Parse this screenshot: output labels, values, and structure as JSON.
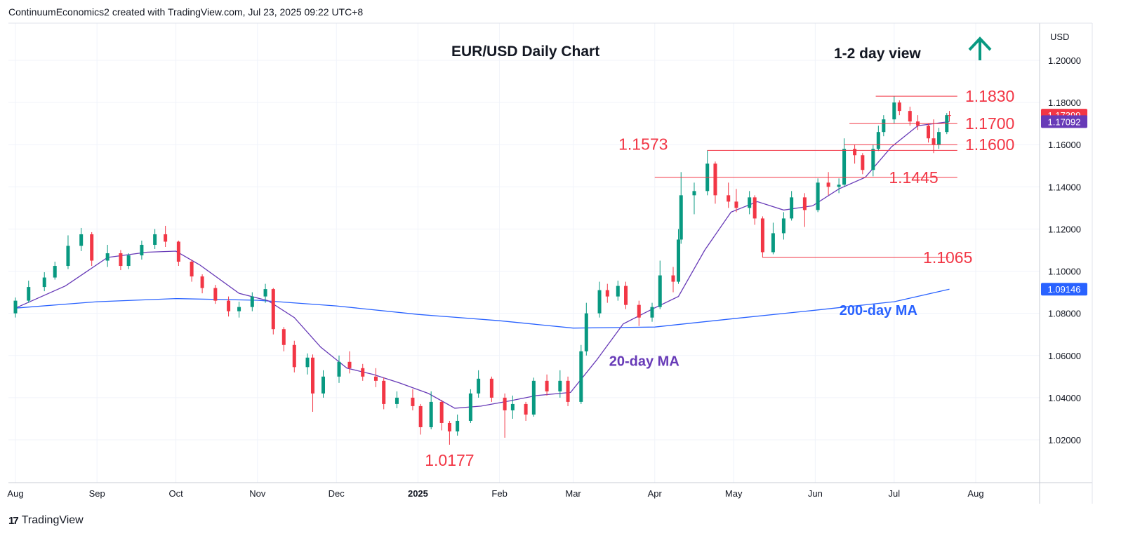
{
  "header": {
    "text": "ContinuumEconomics2 created with TradingView.com, Jul 23, 2025 09:22 UTC+8"
  },
  "footer": {
    "logo": "17",
    "brand": "TradingView"
  },
  "colors": {
    "up": "#089981",
    "down": "#f23645",
    "ma20": "#673ab7",
    "ma200": "#2962ff",
    "level": "#f23645",
    "arrow": "#089981"
  },
  "chart_data": {
    "type": "candlestick",
    "title": "EUR/USD Daily Chart",
    "view_label": "1-2 day view",
    "view_direction": "up-arrow-icon",
    "currency": "USD",
    "ylim": [
      1.0,
      1.2133
    ],
    "y_ticks": [
      "1.20000",
      "1.18000",
      "1.16000",
      "1.14000",
      "1.12000",
      "1.10000",
      "1.08000",
      "1.06000",
      "1.04000",
      "1.02000"
    ],
    "x_ticks": [
      {
        "label": "Aug",
        "date": "2024-08-01",
        "bold": false
      },
      {
        "label": "Sep",
        "date": "2024-09-01",
        "bold": false
      },
      {
        "label": "Oct",
        "date": "2024-10-01",
        "bold": false
      },
      {
        "label": "Nov",
        "date": "2024-11-01",
        "bold": false
      },
      {
        "label": "Dec",
        "date": "2024-12-01",
        "bold": false
      },
      {
        "label": "2025",
        "date": "2025-01-01",
        "bold": true
      },
      {
        "label": "Feb",
        "date": "2025-02-01",
        "bold": false
      },
      {
        "label": "Mar",
        "date": "2025-03-01",
        "bold": false
      },
      {
        "label": "Apr",
        "date": "2025-04-01",
        "bold": false
      },
      {
        "label": "May",
        "date": "2025-05-01",
        "bold": false
      },
      {
        "label": "Jun",
        "date": "2025-06-01",
        "bold": false
      },
      {
        "label": "Jul",
        "date": "2025-07-01",
        "bold": false
      },
      {
        "label": "Aug",
        "date": "2025-08-01",
        "bold": false
      }
    ],
    "price_labels": [
      {
        "text": "1.17399",
        "value": 1.17399,
        "bg": "#f23645"
      },
      {
        "text": "1.17092",
        "value": 1.17092,
        "bg": "#673ab7"
      },
      {
        "text": "1.09146",
        "value": 1.09146,
        "bg": "#2962ff"
      }
    ],
    "levels": [
      {
        "label": "1.1830",
        "value": 1.183,
        "x0": "2025-06-24",
        "x1": "2025-07-25",
        "label_at": "2025-07-28"
      },
      {
        "label": "1.1700",
        "value": 1.17,
        "x0": "2025-06-14",
        "x1": "2025-07-25",
        "label_at": "2025-07-28"
      },
      {
        "label": "1.1600",
        "value": 1.16,
        "x0": "2025-06-12",
        "x1": "2025-07-25",
        "label_at": "2025-07-28"
      },
      {
        "label": "1.1573",
        "value": 1.1573,
        "x0": "2025-04-21",
        "x1": "2025-07-25",
        "label_at": "2025-04-06"
      },
      {
        "label": "1.1445",
        "value": 1.1445,
        "x0": "2025-04-01",
        "x1": "2025-07-25",
        "label_at": "2025-06-29"
      },
      {
        "label": "1.1065",
        "value": 1.1065,
        "x0": "2025-05-12",
        "x1": "2025-07-22",
        "label_at": "2025-07-12"
      },
      {
        "label": "1.0177",
        "value": 1.0177,
        "x0": "",
        "x1": "",
        "label_at": "2025-01-13"
      }
    ],
    "ma_labels": [
      {
        "text": "20-day MA",
        "date": "2025-03-28",
        "value": 1.0551,
        "color": "#673ab7"
      },
      {
        "text": "200-day MA",
        "date": "2025-06-25",
        "value": 1.0792,
        "color": "#2962ff"
      }
    ],
    "ma20": [
      [
        "2024-08-01",
        1.0825
      ],
      [
        "2024-08-20",
        1.093
      ],
      [
        "2024-09-05",
        1.1065
      ],
      [
        "2024-09-20",
        1.109
      ],
      [
        "2024-10-01",
        1.1095
      ],
      [
        "2024-10-10",
        1.103
      ],
      [
        "2024-10-25",
        1.0895
      ],
      [
        "2024-11-05",
        1.086
      ],
      [
        "2024-11-15",
        1.078
      ],
      [
        "2024-11-25",
        1.064
      ],
      [
        "2024-12-05",
        1.054
      ],
      [
        "2024-12-15",
        1.051
      ],
      [
        "2024-12-25",
        1.047
      ],
      [
        "2025-01-05",
        1.042
      ],
      [
        "2025-01-15",
        1.035
      ],
      [
        "2025-01-25",
        1.036
      ],
      [
        "2025-02-05",
        1.0385
      ],
      [
        "2025-02-15",
        1.041
      ],
      [
        "2025-02-28",
        1.0425
      ],
      [
        "2025-03-10",
        1.058
      ],
      [
        "2025-03-20",
        1.075
      ],
      [
        "2025-03-31",
        1.082
      ],
      [
        "2025-04-10",
        1.088
      ],
      [
        "2025-04-20",
        1.11
      ],
      [
        "2025-04-30",
        1.128
      ],
      [
        "2025-05-10",
        1.133
      ],
      [
        "2025-05-20",
        1.129
      ],
      [
        "2025-05-31",
        1.131
      ],
      [
        "2025-06-10",
        1.139
      ],
      [
        "2025-06-20",
        1.1445
      ],
      [
        "2025-06-30",
        1.159
      ],
      [
        "2025-07-10",
        1.169
      ],
      [
        "2025-07-22",
        1.17092
      ]
    ],
    "ma200": [
      [
        "2024-08-01",
        1.0825
      ],
      [
        "2024-09-01",
        1.0855
      ],
      [
        "2024-10-01",
        1.087
      ],
      [
        "2024-11-01",
        1.0862
      ],
      [
        "2024-12-01",
        1.0835
      ],
      [
        "2025-01-01",
        1.0795
      ],
      [
        "2025-02-01",
        1.0765
      ],
      [
        "2025-03-01",
        1.073
      ],
      [
        "2025-04-01",
        1.0735
      ],
      [
        "2025-05-01",
        1.0775
      ],
      [
        "2025-06-01",
        1.0815
      ],
      [
        "2025-07-01",
        1.0855
      ],
      [
        "2025-07-22",
        1.09146
      ]
    ],
    "candles": [
      [
        "2024-08-01",
        1.08,
        1.0875,
        1.078,
        1.086
      ],
      [
        "2024-08-06",
        1.086,
        1.0955,
        1.085,
        1.0925
      ],
      [
        "2024-08-12",
        1.0925,
        1.0995,
        1.0905,
        1.097
      ],
      [
        "2024-08-16",
        1.097,
        1.1045,
        1.096,
        1.1025
      ],
      [
        "2024-08-21",
        1.1025,
        1.117,
        1.101,
        1.112
      ],
      [
        "2024-08-26",
        1.112,
        1.1205,
        1.1095,
        1.1175
      ],
      [
        "2024-08-30",
        1.1175,
        1.1185,
        1.1025,
        1.105
      ],
      [
        "2024-09-05",
        1.105,
        1.1125,
        1.102,
        1.1085
      ],
      [
        "2024-09-10",
        1.1085,
        1.11,
        1.1005,
        1.1025
      ],
      [
        "2024-09-13",
        1.1025,
        1.1085,
        1.101,
        1.1075
      ],
      [
        "2024-09-18",
        1.1075,
        1.1145,
        1.1055,
        1.1125
      ],
      [
        "2024-09-23",
        1.1125,
        1.12,
        1.1105,
        1.1175
      ],
      [
        "2024-09-27",
        1.1175,
        1.1215,
        1.1115,
        1.114
      ],
      [
        "2024-10-02",
        1.114,
        1.1145,
        1.1025,
        1.1045
      ],
      [
        "2024-10-07",
        1.1045,
        1.1055,
        1.095,
        1.0975
      ],
      [
        "2024-10-11",
        1.0975,
        1.0985,
        1.0895,
        1.092
      ],
      [
        "2024-10-16",
        1.092,
        1.0935,
        1.0845,
        1.086
      ],
      [
        "2024-10-21",
        1.086,
        1.088,
        1.0785,
        1.081
      ],
      [
        "2024-10-25",
        1.081,
        1.0855,
        1.078,
        1.083
      ],
      [
        "2024-10-30",
        1.083,
        1.09,
        1.081,
        1.088
      ],
      [
        "2024-11-04",
        1.088,
        1.094,
        1.085,
        1.0915
      ],
      [
        "2024-11-07",
        1.0915,
        1.092,
        1.07,
        1.0725
      ],
      [
        "2024-11-11",
        1.0725,
        1.0735,
        1.062,
        1.065
      ],
      [
        "2024-11-15",
        1.065,
        1.067,
        1.052,
        1.0545
      ],
      [
        "2024-11-20",
        1.0545,
        1.061,
        1.051,
        1.059
      ],
      [
        "2024-11-22",
        1.059,
        1.0605,
        1.0333,
        1.042
      ],
      [
        "2024-11-26",
        1.042,
        1.053,
        1.04,
        1.05
      ],
      [
        "2024-12-02",
        1.05,
        1.06,
        1.047,
        1.057
      ],
      [
        "2024-12-06",
        1.057,
        1.062,
        1.0515,
        1.054
      ],
      [
        "2024-12-11",
        1.054,
        1.056,
        1.048,
        1.05
      ],
      [
        "2024-12-16",
        1.05,
        1.054,
        1.045,
        1.048
      ],
      [
        "2024-12-19",
        1.048,
        1.0495,
        1.0345,
        1.037
      ],
      [
        "2024-12-24",
        1.037,
        1.043,
        1.035,
        1.04
      ],
      [
        "2024-12-30",
        1.04,
        1.044,
        1.034,
        1.036
      ],
      [
        "2025-01-02",
        1.036,
        1.037,
        1.0225,
        1.026
      ],
      [
        "2025-01-06",
        1.026,
        1.043,
        1.025,
        1.038
      ],
      [
        "2025-01-10",
        1.038,
        1.039,
        1.0245,
        1.028
      ],
      [
        "2025-01-13",
        1.028,
        1.029,
        1.0177,
        1.024
      ],
      [
        "2025-01-16",
        1.024,
        1.032,
        1.022,
        1.029
      ],
      [
        "2025-01-21",
        1.029,
        1.044,
        1.028,
        1.042
      ],
      [
        "2025-01-24",
        1.042,
        1.053,
        1.04,
        1.049
      ],
      [
        "2025-01-29",
        1.049,
        1.05,
        1.038,
        1.04
      ],
      [
        "2025-02-03",
        1.04,
        1.042,
        1.021,
        1.034
      ],
      [
        "2025-02-06",
        1.034,
        1.041,
        1.03,
        1.037
      ],
      [
        "2025-02-11",
        1.037,
        1.038,
        1.029,
        1.032
      ],
      [
        "2025-02-14",
        1.032,
        1.0495,
        1.031,
        1.048
      ],
      [
        "2025-02-19",
        1.048,
        1.051,
        1.041,
        1.043
      ],
      [
        "2025-02-24",
        1.043,
        1.053,
        1.04,
        1.048
      ],
      [
        "2025-02-27",
        1.048,
        1.05,
        1.036,
        1.038
      ],
      [
        "2025-03-04",
        1.038,
        1.065,
        1.037,
        1.062
      ],
      [
        "2025-03-06",
        1.062,
        1.085,
        1.06,
        1.08
      ],
      [
        "2025-03-11",
        1.08,
        1.095,
        1.078,
        1.091
      ],
      [
        "2025-03-14",
        1.091,
        1.094,
        1.085,
        1.088
      ],
      [
        "2025-03-18",
        1.088,
        1.0955,
        1.086,
        1.093
      ],
      [
        "2025-03-21",
        1.093,
        1.095,
        1.082,
        1.084
      ],
      [
        "2025-03-26",
        1.084,
        1.086,
        1.074,
        1.078
      ],
      [
        "2025-03-31",
        1.078,
        1.085,
        1.076,
        1.083
      ],
      [
        "2025-04-03",
        1.083,
        1.105,
        1.082,
        1.098
      ],
      [
        "2025-04-08",
        1.098,
        1.102,
        1.09,
        1.095
      ],
      [
        "2025-04-10",
        1.095,
        1.12,
        1.094,
        1.115
      ],
      [
        "2025-04-11",
        1.115,
        1.147,
        1.113,
        1.136
      ],
      [
        "2025-04-16",
        1.136,
        1.142,
        1.127,
        1.138
      ],
      [
        "2025-04-21",
        1.138,
        1.1573,
        1.136,
        1.151
      ],
      [
        "2025-04-24",
        1.151,
        1.152,
        1.132,
        1.136
      ],
      [
        "2025-04-29",
        1.136,
        1.142,
        1.13,
        1.133
      ],
      [
        "2025-05-02",
        1.133,
        1.139,
        1.128,
        1.13
      ],
      [
        "2025-05-07",
        1.13,
        1.138,
        1.127,
        1.135
      ],
      [
        "2025-05-09",
        1.135,
        1.136,
        1.122,
        1.125
      ],
      [
        "2025-05-12",
        1.125,
        1.126,
        1.1065,
        1.109
      ],
      [
        "2025-05-16",
        1.109,
        1.123,
        1.108,
        1.118
      ],
      [
        "2025-05-20",
        1.118,
        1.128,
        1.115,
        1.125
      ],
      [
        "2025-05-23",
        1.125,
        1.138,
        1.124,
        1.135
      ],
      [
        "2025-05-28",
        1.135,
        1.137,
        1.121,
        1.129
      ],
      [
        "2025-06-02",
        1.129,
        1.144,
        1.128,
        1.142
      ],
      [
        "2025-06-06",
        1.142,
        1.147,
        1.136,
        1.14
      ],
      [
        "2025-06-10",
        1.14,
        1.144,
        1.137,
        1.141
      ],
      [
        "2025-06-12",
        1.141,
        1.163,
        1.14,
        1.158
      ],
      [
        "2025-06-16",
        1.158,
        1.16,
        1.151,
        1.155
      ],
      [
        "2025-06-19",
        1.155,
        1.156,
        1.146,
        1.148
      ],
      [
        "2025-06-23",
        1.148,
        1.16,
        1.145,
        1.158
      ],
      [
        "2025-06-25",
        1.158,
        1.169,
        1.157,
        1.166
      ],
      [
        "2025-06-27",
        1.166,
        1.174,
        1.164,
        1.172
      ],
      [
        "2025-07-01",
        1.172,
        1.183,
        1.17,
        1.18
      ],
      [
        "2025-07-03",
        1.18,
        1.181,
        1.174,
        1.176
      ],
      [
        "2025-07-07",
        1.176,
        1.178,
        1.169,
        1.171
      ],
      [
        "2025-07-10",
        1.171,
        1.174,
        1.167,
        1.169
      ],
      [
        "2025-07-14",
        1.169,
        1.17,
        1.161,
        1.163
      ],
      [
        "2025-07-16",
        1.163,
        1.172,
        1.156,
        1.16
      ],
      [
        "2025-07-18",
        1.16,
        1.168,
        1.158,
        1.166
      ],
      [
        "2025-07-21",
        1.166,
        1.175,
        1.165,
        1.174
      ],
      [
        "2025-07-22",
        1.174,
        1.176,
        1.171,
        1.17399
      ]
    ]
  }
}
